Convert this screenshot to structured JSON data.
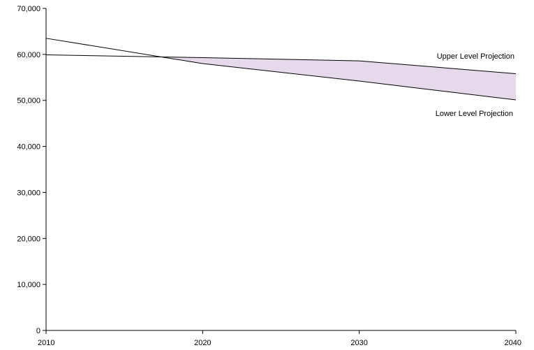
{
  "chart_data": {
    "type": "line",
    "title": "",
    "xlabel": "",
    "ylabel": "",
    "x": [
      2010,
      2020,
      2030,
      2040
    ],
    "xlim": [
      2010,
      2040
    ],
    "ylim": [
      0,
      70000
    ],
    "x_ticks": [
      2010,
      2020,
      2030,
      2040
    ],
    "y_ticks": [
      0,
      10000,
      20000,
      30000,
      40000,
      50000,
      60000,
      70000
    ],
    "x_tick_labels": [
      "2010",
      "2020",
      "2030",
      "2040"
    ],
    "y_tick_labels": [
      "0",
      "10,000",
      "20,000",
      "30,000",
      "40,000",
      "50,000",
      "60,000",
      "70,000"
    ],
    "grid": false,
    "series": [
      {
        "name": "Upper Level Projection",
        "values": [
          59900,
          59300,
          58600,
          55800
        ]
      },
      {
        "name": "Lower Level Projection",
        "values": [
          63500,
          58000,
          54200,
          50100
        ]
      }
    ],
    "band_color": "#e6d9ec",
    "line_color": "#000000",
    "annotations": {
      "upper": "Upper Level Projection",
      "lower": "Lower Level Projection"
    }
  }
}
